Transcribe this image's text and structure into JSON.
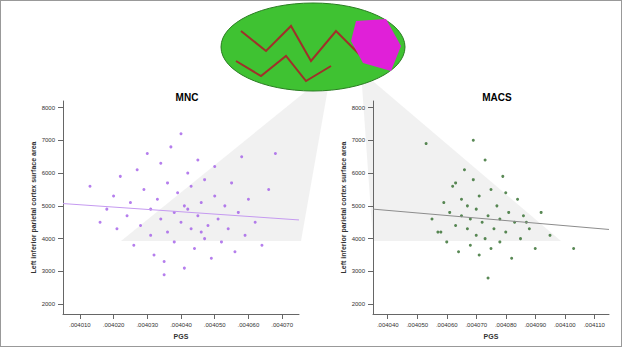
{
  "chart_data": [
    {
      "type": "scatter",
      "title": "MNC",
      "xlabel": "PGS",
      "ylabel": "Left inferior parietal cortex surface area",
      "color": "#a35ee8",
      "marker": "circle",
      "grid": false,
      "x": [
        0.004013,
        0.004016,
        0.004018,
        0.00402,
        0.004021,
        0.004022,
        0.004024,
        0.004025,
        0.004026,
        0.004027,
        0.004028,
        0.004029,
        0.00403,
        0.004031,
        0.004031,
        0.004032,
        0.004033,
        0.004034,
        0.004034,
        0.004035,
        0.004036,
        0.004036,
        0.004037,
        0.004038,
        0.004038,
        0.004039,
        0.00404,
        0.00404,
        0.004041,
        0.004041,
        0.004042,
        0.004043,
        0.004043,
        0.004044,
        0.004045,
        0.004045,
        0.004046,
        0.004047,
        0.004047,
        0.004048,
        0.004049,
        0.00405,
        0.00405,
        0.004051,
        0.004052,
        0.004053,
        0.004054,
        0.004055,
        0.004056,
        0.004057,
        0.004058,
        0.004059,
        0.00406,
        0.004062,
        0.004064,
        0.004066,
        0.004068,
        0.004035,
        0.004042,
        0.004046
      ],
      "values": [
        5600,
        4500,
        4900,
        5300,
        4300,
        5900,
        4700,
        5100,
        3800,
        6100,
        4400,
        5500,
        6600,
        4100,
        4900,
        3500,
        5200,
        6300,
        4600,
        3300,
        5700,
        4200,
        6800,
        4800,
        3900,
        5400,
        4500,
        7200,
        3100,
        5000,
        6000,
        4300,
        5600,
        3700,
        4700,
        6400,
        5100,
        4000,
        5800,
        4400,
        3400,
        5300,
        6200,
        4600,
        3900,
        5000,
        4300,
        5700,
        3600,
        4800,
        6500,
        4100,
        5200,
        4500,
        3800,
        5500,
        6600,
        2900,
        4900,
        4200
      ],
      "fit_line": {
        "x": [
          0.004005,
          0.004075
        ],
        "values": [
          5070,
          4570
        ],
        "color": "#c59af0",
        "line_style": "solid"
      },
      "xlim": [
        0.004005,
        0.004075
      ],
      "xticks": [
        {
          "value": 0.00401,
          "label": ".004010"
        },
        {
          "value": 0.00402,
          "label": ".004020"
        },
        {
          "value": 0.00403,
          "label": ".004030"
        },
        {
          "value": 0.00404,
          "label": ".004040"
        },
        {
          "value": 0.00405,
          "label": ".004050"
        },
        {
          "value": 0.00406,
          "label": ".004060"
        },
        {
          "value": 0.00407,
          "label": ".004070"
        }
      ],
      "ylim": [
        1700,
        8200
      ],
      "yticks": [
        2000,
        3000,
        4000,
        5000,
        6000,
        7000,
        8000
      ]
    },
    {
      "type": "scatter",
      "title": "MACS",
      "xlabel": "PGS",
      "ylabel": "Left inferior parietal cortex surface area",
      "color": "#2f6b2a",
      "marker": "circle",
      "grid": false,
      "x": [
        0.004053,
        0.004055,
        0.004057,
        0.004059,
        0.00406,
        0.004061,
        0.004062,
        0.004063,
        0.004064,
        0.004065,
        0.004065,
        0.004066,
        0.004067,
        0.004067,
        0.004068,
        0.004068,
        0.004069,
        0.00407,
        0.00407,
        0.004071,
        0.004071,
        0.004072,
        0.004073,
        0.004073,
        0.004074,
        0.004075,
        0.004075,
        0.004076,
        0.004077,
        0.004078,
        0.004078,
        0.004079,
        0.00408,
        0.004081,
        0.004082,
        0.004083,
        0.004084,
        0.004085,
        0.004086,
        0.004088,
        0.00409,
        0.004092,
        0.004095,
        0.004103,
        0.004069,
        0.004074,
        0.00408,
        0.004063,
        0.004087,
        0.004058
      ],
      "values": [
        6900,
        4600,
        4200,
        5100,
        3900,
        4800,
        5600,
        4400,
        3600,
        5200,
        4700,
        6100,
        4300,
        5000,
        3800,
        4600,
        5800,
        4100,
        4900,
        3500,
        5300,
        4500,
        6400,
        4000,
        4700,
        5500,
        3700,
        4300,
        5000,
        4600,
        3900,
        5900,
        4200,
        4800,
        3400,
        4500,
        5200,
        4000,
        4700,
        4300,
        3700,
        4800,
        4100,
        3700,
        7000,
        2800,
        5400,
        5700,
        4500,
        4200
      ],
      "fit_line": {
        "x": [
          0.004035,
          0.004115
        ],
        "values": [
          4900,
          4280
        ],
        "color": "#8c8c8c",
        "line_style": "solid"
      },
      "xlim": [
        0.004035,
        0.004115
      ],
      "xticks": [
        {
          "value": 0.00404,
          "label": ".004040"
        },
        {
          "value": 0.00405,
          "label": ".004050"
        },
        {
          "value": 0.00406,
          "label": ".004060"
        },
        {
          "value": 0.00407,
          "label": ".004070"
        },
        {
          "value": 0.00408,
          "label": ".004080"
        },
        {
          "value": 0.00409,
          "label": ".004090"
        },
        {
          "value": 0.0041,
          "label": ".004100"
        },
        {
          "value": 0.00411,
          "label": ".004110"
        }
      ],
      "ylim": [
        1700,
        8200
      ],
      "yticks": [
        2000,
        3000,
        4000,
        5000,
        6000,
        7000,
        8000
      ]
    }
  ]
}
